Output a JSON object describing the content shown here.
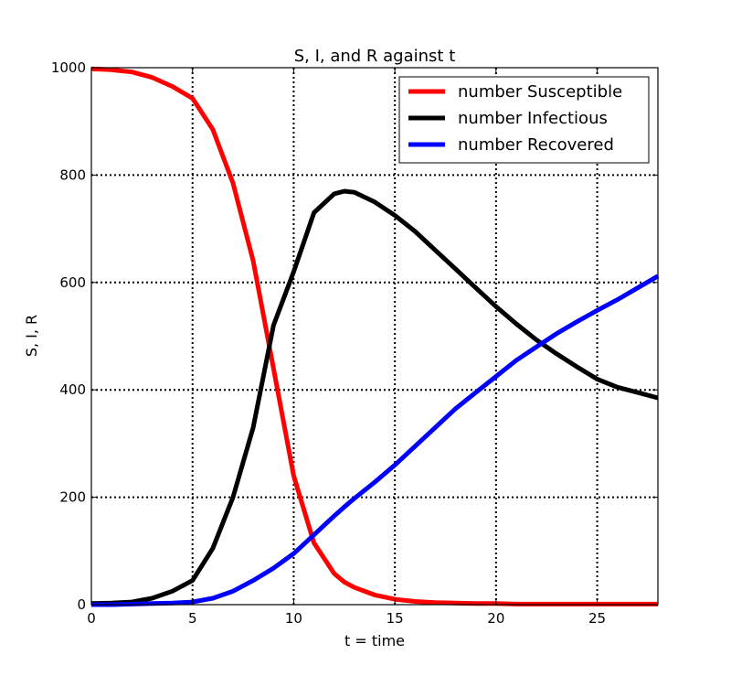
{
  "chart_data": {
    "type": "line",
    "title": "S, I, and R against t",
    "xlabel": "t = time",
    "ylabel": "S, I, R",
    "xlim": [
      0,
      28
    ],
    "ylim": [
      0,
      1000
    ],
    "x_ticks": [
      0,
      5,
      10,
      15,
      20,
      25
    ],
    "y_ticks": [
      0,
      200,
      400,
      600,
      800,
      1000
    ],
    "grid": true,
    "grid_style": "dotted",
    "legend_position": "top-right",
    "x": [
      0,
      1,
      2,
      3,
      4,
      5,
      6,
      7,
      8,
      9,
      10,
      11,
      12,
      12.5,
      13,
      14,
      15,
      16,
      17,
      18,
      19,
      20,
      21,
      22,
      23,
      24,
      25,
      26,
      27,
      28
    ],
    "series": [
      {
        "name": "number Susceptible",
        "color": "#ff0000",
        "values": [
          998,
          996,
          992,
          982,
          965,
          943,
          885,
          785,
          640,
          440,
          240,
          115,
          58,
          42,
          32,
          18,
          10,
          6,
          4,
          3,
          2,
          2,
          1,
          1,
          1,
          1,
          1,
          1,
          1,
          1
        ]
      },
      {
        "name": "number Infectious",
        "color": "#000000",
        "values": [
          2,
          3,
          5,
          12,
          25,
          45,
          105,
          200,
          330,
          520,
          620,
          730,
          765,
          770,
          768,
          750,
          725,
          695,
          660,
          625,
          590,
          555,
          523,
          493,
          467,
          443,
          420,
          405,
          395,
          385
        ]
      },
      {
        "name": "number Recovered",
        "color": "#0000ff",
        "values": [
          0,
          0,
          1,
          2,
          3,
          5,
          12,
          25,
          45,
          68,
          95,
          130,
          165,
          182,
          198,
          228,
          260,
          295,
          330,
          365,
          395,
          425,
          455,
          480,
          505,
          527,
          548,
          568,
          590,
          612
        ]
      }
    ]
  }
}
